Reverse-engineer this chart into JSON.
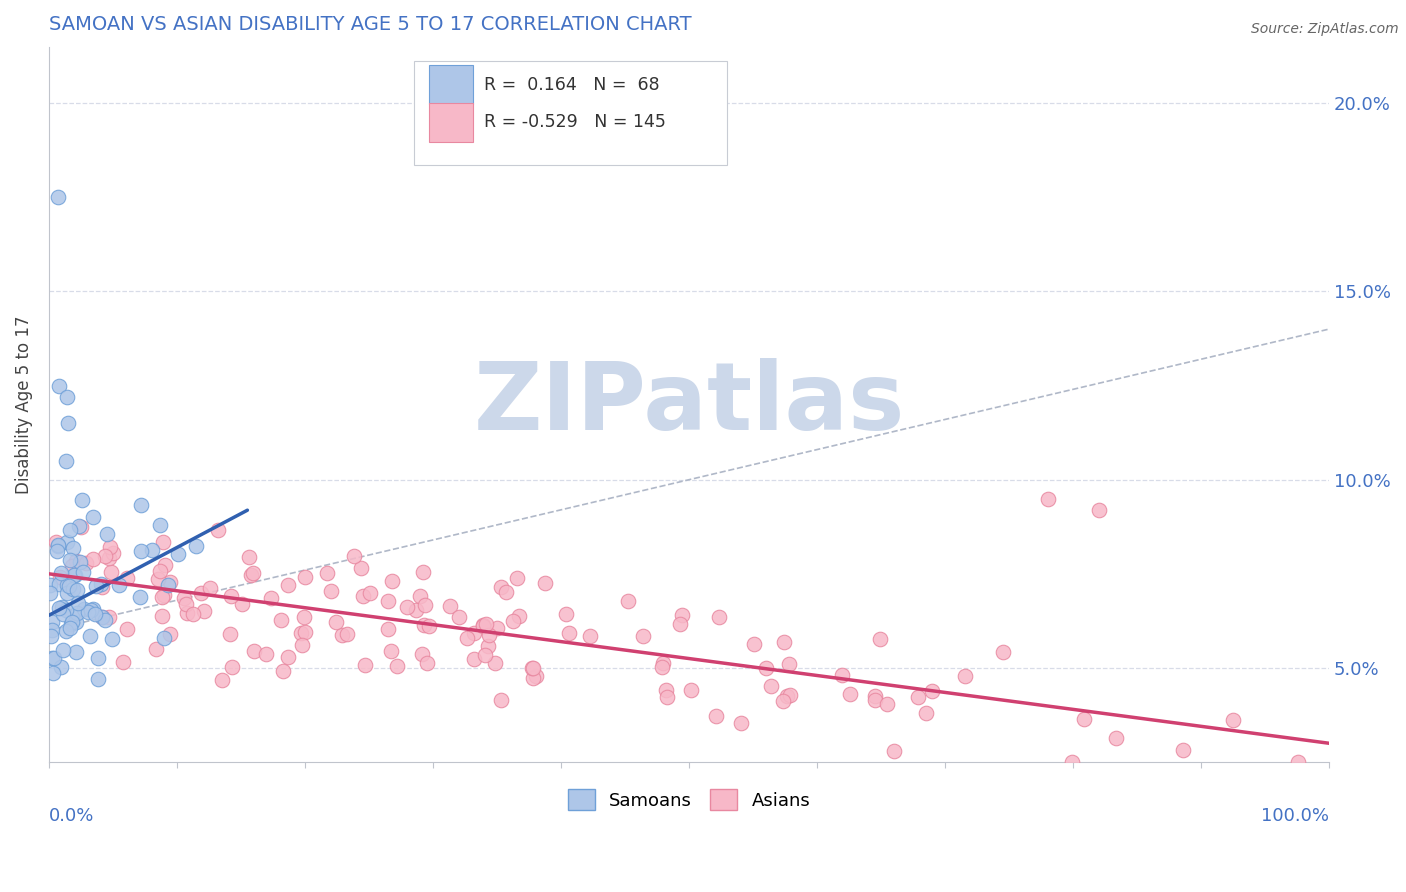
{
  "title": "SAMOAN VS ASIAN DISABILITY AGE 5 TO 17 CORRELATION CHART",
  "source": "Source: ZipAtlas.com",
  "ylabel": "Disability Age 5 to 17",
  "y_tick_labels": [
    "5.0%",
    "10.0%",
    "15.0%",
    "20.0%"
  ],
  "y_tick_values": [
    0.05,
    0.1,
    0.15,
    0.2
  ],
  "x_range": [
    0.0,
    1.0
  ],
  "y_range": [
    0.025,
    0.215
  ],
  "samoans_R": 0.164,
  "samoans_N": 68,
  "asians_R": -0.529,
  "asians_N": 145,
  "samoan_fill": "#aec6e8",
  "samoan_edge": "#6fa0d8",
  "asian_fill": "#f7b8c8",
  "asian_edge": "#e888a0",
  "samoan_line_color": "#3060b0",
  "asian_line_color": "#d04070",
  "dash_line_color": "#b0b8c8",
  "watermark_text": "ZIPatlas",
  "watermark_color": "#ccd8ea",
  "background_color": "#ffffff",
  "title_color": "#4472c4",
  "axis_label_color": "#4472c4",
  "grid_color": "#d8dce8",
  "spine_color": "#c0c4cc"
}
